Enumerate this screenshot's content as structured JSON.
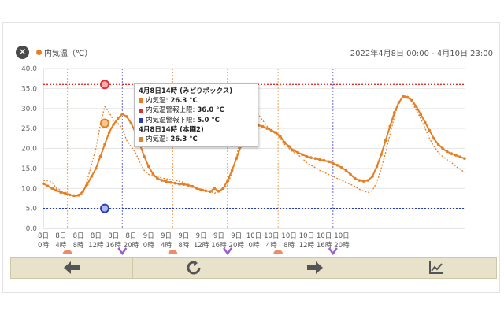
{
  "legend": {
    "label": "内気温（℃）",
    "color": "#e67e22"
  },
  "date_range": "2022年4月8日 00:00 - 4月10日 23:00",
  "tooltip": {
    "header1": "4月8日14時 (みどりボックス)",
    "rows1": [
      {
        "label": "内気温: ",
        "value": "26.3 °C",
        "color": "#e67e22"
      },
      {
        "label": "内気温警報上限: ",
        "value": "36.0 °C",
        "color": "#e03030"
      },
      {
        "label": "内気温警報下限: ",
        "value": "5.0 °C",
        "color": "#2a3fb0"
      }
    ],
    "header2": "4月8日14時 (本圃2)",
    "rows2": [
      {
        "label": "内気温: ",
        "value": "26.3 °C",
        "color": "#e67e22"
      }
    ]
  },
  "chart_data": {
    "type": "line",
    "ylim": [
      0,
      40
    ],
    "yticks": [
      "0.0",
      "5.0",
      "10.0",
      "15.0",
      "20.0",
      "25.0",
      "30.0",
      "35.0",
      "40.0"
    ],
    "xticks": [
      {
        "d": "8日",
        "t": "0時"
      },
      {
        "d": "8日",
        "t": "4時"
      },
      {
        "d": "8日",
        "t": "8時"
      },
      {
        "d": "8日",
        "t": "12時"
      },
      {
        "d": "8日",
        "t": "16時"
      },
      {
        "d": "8日",
        "t": "20時"
      },
      {
        "d": "9日",
        "t": "0時"
      },
      {
        "d": "9日",
        "t": "4時"
      },
      {
        "d": "9日",
        "t": "8時"
      },
      {
        "d": "9日",
        "t": "12時"
      },
      {
        "d": "9日",
        "t": "16時"
      },
      {
        "d": "9日",
        "t": "20時"
      },
      {
        "d": "10日",
        "t": "0時"
      },
      {
        "d": "10日",
        "t": "4時"
      },
      {
        "d": "10日",
        "t": "8時"
      },
      {
        "d": "10日",
        "t": "12時"
      },
      {
        "d": "10日",
        "t": "16時"
      },
      {
        "d": "10日",
        "t": "20時"
      }
    ],
    "alarm_upper": 36.0,
    "alarm_lower": 5.0,
    "series": [
      {
        "values": [
          11.2,
          10.6,
          10.0,
          9.5,
          9.0,
          8.8,
          8.4,
          8.2,
          8.3,
          9.2,
          11.0,
          13.0,
          15.0,
          18.0,
          21.0,
          24.0,
          26.0,
          27.5,
          28.6,
          28.0,
          26.3,
          24.0,
          21.0,
          18.0,
          15.5,
          13.6,
          12.5,
          12.0,
          11.7,
          11.5,
          11.3,
          11.1,
          11.0,
          10.8,
          10.5,
          10.0,
          9.6,
          9.4,
          9.2,
          10.0,
          9.3,
          10.0,
          12.0,
          14.5,
          17.5,
          20.5,
          23.5,
          25.5,
          26.0,
          25.8,
          25.5,
          25.0,
          24.5,
          24.0,
          23.0,
          21.5,
          20.5,
          19.5,
          19.0,
          18.5,
          18.0,
          17.7,
          17.5,
          17.2,
          17.0,
          16.7,
          16.3,
          15.8,
          15.2,
          14.5,
          13.5,
          12.5,
          12.0,
          11.8,
          12.0,
          13.0,
          15.5,
          18.5,
          22.0,
          25.5,
          29.0,
          31.5,
          33.0,
          32.8,
          32.0,
          30.5,
          28.5,
          26.5,
          24.5,
          22.5,
          21.0,
          20.0,
          19.2,
          18.7,
          18.3,
          17.9,
          17.5
        ]
      },
      {
        "values": [
          12.0,
          12.0,
          11.5,
          10.0,
          9.5,
          8.5,
          8.2,
          8.1,
          8.0,
          8.8,
          12.0,
          16.0,
          20.0,
          26.0,
          30.5,
          29.0,
          27.0,
          26.3,
          25.0,
          22.0,
          20.5,
          19.0,
          16.5,
          14.5,
          13.5,
          13.0,
          12.8,
          12.6,
          12.4,
          12.2,
          12.0,
          11.8,
          11.5,
          11.0,
          10.5,
          10.0,
          9.8,
          9.6,
          9.3,
          8.8,
          9.2,
          9.8,
          11.0,
          14.0,
          18.0,
          22.5,
          26.0,
          29.0,
          29.5,
          28.5,
          27.0,
          25.5,
          24.5,
          23.5,
          22.5,
          21.0,
          20.0,
          19.0,
          18.5,
          17.5,
          16.5,
          15.8,
          15.2,
          14.5,
          14.0,
          13.5,
          13.0,
          12.5,
          12.0,
          11.5,
          11.0,
          10.5,
          9.8,
          9.3,
          9.0,
          9.5,
          11.5,
          15.0,
          19.0,
          23.5,
          28.0,
          31.5,
          33.5,
          33.0,
          31.5,
          29.5,
          27.5,
          25.0,
          22.5,
          20.5,
          19.0,
          18.0,
          17.2,
          16.5,
          15.5,
          14.8,
          14.0
        ]
      }
    ]
  },
  "toolbar": {
    "prev": "arrow-left-icon",
    "refresh": "refresh-icon",
    "next": "arrow-right-icon",
    "chart": "line-chart-icon"
  }
}
